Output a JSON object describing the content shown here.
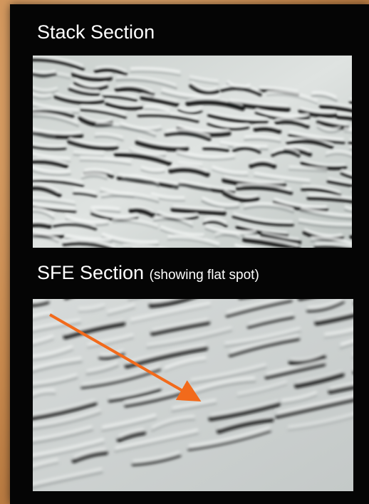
{
  "stack_section": {
    "title": "Stack Section"
  },
  "sfe_section": {
    "title": "SFE Section",
    "subtitle": "(showing flat spot)"
  },
  "colors": {
    "background": "#c98a4e",
    "panel": "#050505",
    "text": "#ffffff",
    "arrow": "#f26a1b"
  }
}
